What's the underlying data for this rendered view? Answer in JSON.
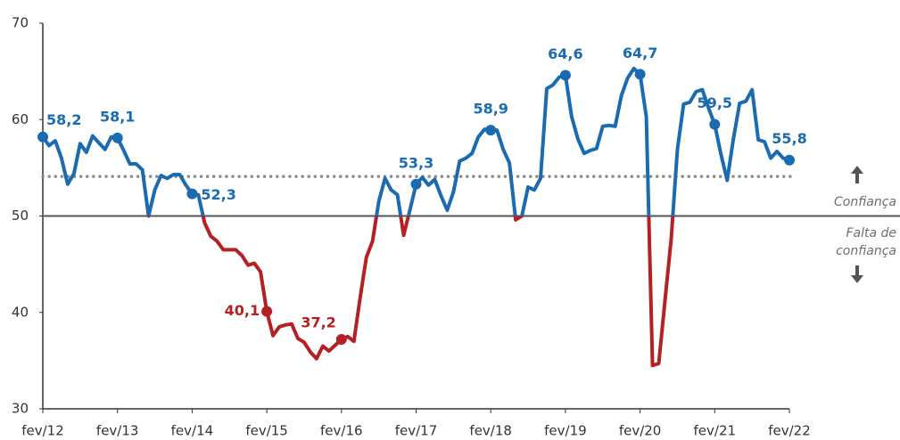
{
  "chart_data": {
    "type": "line",
    "categories": [
      "fev/12",
      null,
      null,
      null,
      null,
      null,
      null,
      null,
      null,
      null,
      null,
      null,
      "fev/13",
      null,
      null,
      null,
      null,
      null,
      null,
      null,
      null,
      null,
      null,
      null,
      "fev/14",
      null,
      null,
      null,
      null,
      null,
      null,
      null,
      null,
      null,
      null,
      null,
      "fev/15",
      null,
      null,
      null,
      null,
      null,
      null,
      null,
      null,
      null,
      null,
      null,
      "fev/16",
      null,
      null,
      null,
      null,
      null,
      null,
      null,
      null,
      null,
      null,
      null,
      "fev/17",
      null,
      null,
      null,
      null,
      null,
      null,
      null,
      null,
      null,
      null,
      null,
      "fev/18",
      null,
      null,
      null,
      null,
      null,
      null,
      null,
      null,
      null,
      null,
      null,
      "fev/19",
      null,
      null,
      null,
      null,
      null,
      null,
      null,
      null,
      null,
      null,
      null,
      "fev/20",
      null,
      null,
      null,
      null,
      null,
      null,
      null,
      null,
      null,
      null,
      null,
      "fev/21",
      null,
      null,
      null,
      null,
      null,
      null,
      null,
      null,
      null,
      null,
      null,
      "fev/22"
    ],
    "series": [
      {
        "color": "#1a6bb0",
        "color_below": "#b52025",
        "values": [
          58.2,
          57.3,
          57.8,
          56.0,
          53.3,
          54.4,
          57.5,
          56.6,
          58.3,
          57.6,
          56.9,
          58.2,
          58.1,
          56.8,
          55.4,
          55.4,
          54.8,
          50.0,
          52.7,
          54.2,
          53.9,
          54.3,
          54.3,
          53.2,
          52.3,
          52.2,
          49.3,
          47.9,
          47.4,
          46.5,
          46.5,
          46.5,
          45.9,
          44.9,
          45.1,
          44.2,
          40.1,
          37.6,
          38.5,
          38.7,
          38.8,
          37.3,
          36.9,
          35.9,
          35.2,
          36.5,
          36.0,
          36.6,
          37.2,
          37.5,
          37.0,
          41.5,
          45.7,
          47.4,
          51.5,
          53.9,
          52.7,
          52.2,
          48.0,
          50.6,
          53.3,
          54.0,
          53.2,
          53.8,
          52.1,
          50.6,
          52.5,
          55.7,
          56.0,
          56.5,
          58.2,
          59.0,
          58.9,
          58.9,
          56.9,
          55.5,
          49.6,
          50.0,
          53.0,
          52.7,
          53.9,
          63.2,
          63.6,
          64.4,
          64.6,
          60.3,
          58.0,
          56.5,
          56.8,
          57.0,
          59.3,
          59.4,
          59.3,
          62.5,
          64.3,
          65.3,
          64.7,
          60.3,
          34.5,
          34.7,
          41.2,
          47.6,
          56.9,
          61.6,
          61.8,
          62.9,
          63.1,
          61.2,
          59.5,
          56.4,
          53.7,
          58.0,
          61.7,
          61.9,
          63.1,
          57.9,
          57.7,
          56.0,
          56.7,
          56.0,
          55.8
        ],
        "value_labels": [
          "58,2",
          null,
          null,
          null,
          null,
          null,
          null,
          null,
          null,
          null,
          null,
          null,
          "58,1",
          null,
          null,
          null,
          null,
          null,
          null,
          null,
          null,
          null,
          null,
          null,
          "52,3",
          null,
          null,
          null,
          null,
          null,
          null,
          null,
          null,
          null,
          null,
          null,
          "40,1",
          null,
          null,
          null,
          null,
          null,
          null,
          null,
          null,
          null,
          null,
          null,
          "37,2",
          null,
          null,
          null,
          null,
          null,
          null,
          null,
          null,
          null,
          null,
          null,
          "53,3",
          null,
          null,
          null,
          null,
          null,
          null,
          null,
          null,
          null,
          null,
          null,
          "58,9",
          null,
          null,
          null,
          null,
          null,
          null,
          null,
          null,
          null,
          null,
          null,
          "64,6",
          null,
          null,
          null,
          null,
          null,
          null,
          null,
          null,
          null,
          null,
          null,
          "64,7",
          null,
          null,
          null,
          null,
          null,
          null,
          null,
          null,
          null,
          null,
          null,
          "59,5",
          null,
          null,
          null,
          null,
          null,
          null,
          null,
          null,
          null,
          null,
          null,
          "55,8"
        ]
      }
    ],
    "ylim": [
      30,
      70
    ],
    "yticks": [
      30,
      40,
      50,
      60,
      70
    ],
    "reference_lines": [
      {
        "value": 50,
        "style": "solid",
        "color": "#555555"
      },
      {
        "value": 54.1,
        "style": "dotted",
        "color": "#8c8c8c"
      }
    ],
    "annotations": [
      "Confiança",
      "Falta de",
      "confiança"
    ]
  }
}
